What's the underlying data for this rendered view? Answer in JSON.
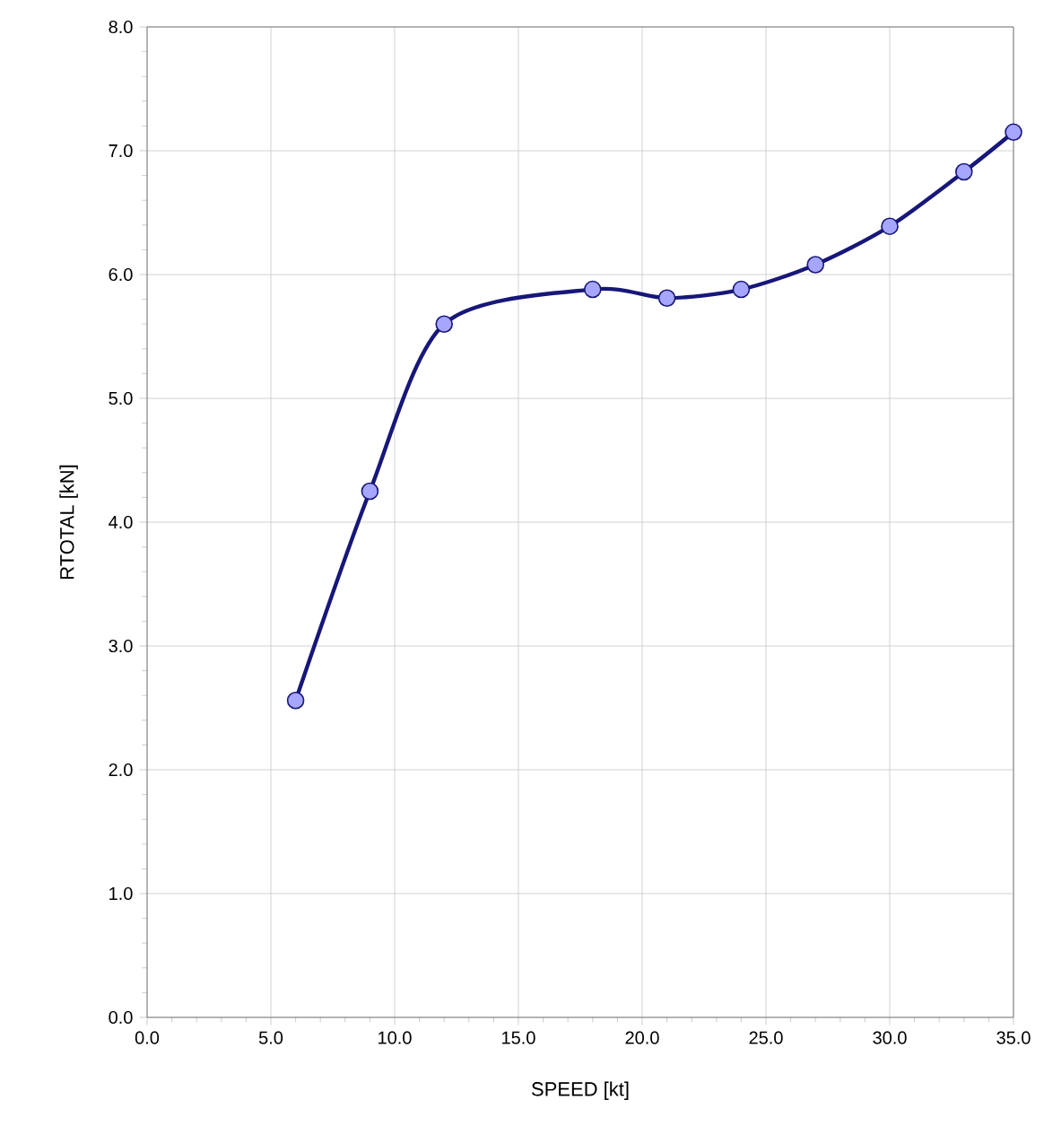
{
  "chart_data": {
    "type": "line",
    "xlabel": "SPEED [kt]",
    "ylabel": "RTOTAL [kN]",
    "x": [
      6,
      9,
      12,
      18,
      21,
      24,
      27,
      30,
      33,
      35
    ],
    "series": [
      {
        "color": "#17177a",
        "values": [
          2.56,
          4.25,
          5.6,
          5.88,
          5.81,
          5.88,
          6.08,
          6.39,
          6.83,
          7.15
        ]
      }
    ],
    "xlim": [
      0,
      35
    ],
    "ylim": [
      0,
      8
    ],
    "xticks": [
      {
        "value": 0,
        "label": "0.0"
      },
      {
        "value": 5,
        "label": "5.0"
      },
      {
        "value": 10,
        "label": "10.0"
      },
      {
        "value": 15,
        "label": "15.0"
      },
      {
        "value": 20,
        "label": "20.0"
      },
      {
        "value": 25,
        "label": "25.0"
      },
      {
        "value": 30,
        "label": "30.0"
      },
      {
        "value": 35,
        "label": "35.0"
      }
    ],
    "yticks": [
      {
        "value": 0,
        "label": "0.0"
      },
      {
        "value": 1,
        "label": "1.0"
      },
      {
        "value": 2,
        "label": "2.0"
      },
      {
        "value": 3,
        "label": "3.0"
      },
      {
        "value": 4,
        "label": "4.0"
      },
      {
        "value": 5,
        "label": "5.0"
      },
      {
        "value": 6,
        "label": "6.0"
      },
      {
        "value": 7,
        "label": "7.0"
      },
      {
        "value": 8,
        "label": "8.0"
      }
    ],
    "grid": true,
    "marker": "circle",
    "line_style": "solid"
  }
}
